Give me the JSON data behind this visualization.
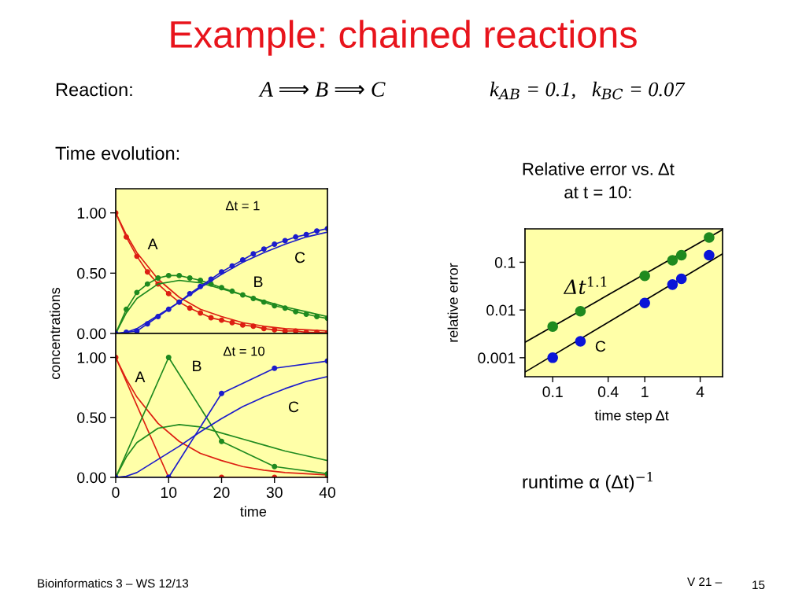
{
  "chart_data": [
    {
      "type": "other",
      "title": "Example: chained reactions",
      "annotations": [
        "Reaction:",
        "A ⟹ B ⟹ C",
        "k$_{AB}$ = 0.1,   k$_{BC}$ = 0.07",
        "Time evolution:",
        "runtime α (Δt)$^{−1}$",
        "Bioinformatics 3 – WS 12/13",
        "V 21 –",
        "15"
      ]
    },
    {
      "type": "line",
      "title": "Δt = 1",
      "ylabel": "concentrations",
      "xlim": [
        0,
        40
      ],
      "ylim": [
        0,
        1.2
      ],
      "yticks": [
        {
          "value": 0,
          "label": "0.00"
        },
        {
          "value": 0.5,
          "label": "0.50"
        },
        {
          "value": 1,
          "label": "1.00"
        }
      ],
      "tick_labels": "y",
      "series": [
        {
          "color": "#dd1f12",
          "marker": "circle",
          "x": [
            0,
            2,
            4,
            6,
            8,
            10,
            12,
            14,
            16,
            18,
            20,
            22,
            24,
            26,
            28,
            30,
            32,
            34,
            36,
            38,
            40
          ],
          "values": [
            1.0,
            0.8,
            0.64,
            0.51,
            0.41,
            0.33,
            0.26,
            0.21,
            0.17,
            0.13,
            0.11,
            0.09,
            0.07,
            0.06,
            0.04,
            0.03,
            0.02,
            0.02,
            0.01,
            0.01,
            0.005
          ]
        },
        {
          "color": "#dd1f12",
          "x": [
            0,
            2,
            4,
            8,
            12,
            16,
            20,
            24,
            28,
            32,
            36,
            40
          ],
          "values": [
            1.0,
            0.82,
            0.67,
            0.45,
            0.3,
            0.2,
            0.14,
            0.09,
            0.06,
            0.04,
            0.03,
            0.02
          ]
        },
        {
          "color": "#1f8a1f",
          "marker": "circle",
          "x": [
            0,
            2,
            4,
            6,
            8,
            10,
            12,
            14,
            16,
            18,
            20,
            22,
            24,
            26,
            28,
            30,
            32,
            34,
            36,
            38,
            40
          ],
          "values": [
            0,
            0.2,
            0.34,
            0.41,
            0.46,
            0.48,
            0.48,
            0.46,
            0.44,
            0.41,
            0.38,
            0.35,
            0.32,
            0.29,
            0.26,
            0.23,
            0.21,
            0.18,
            0.16,
            0.14,
            0.125
          ]
        },
        {
          "color": "#1f8a1f",
          "x": [
            0,
            2,
            4,
            8,
            12,
            16,
            20,
            24,
            28,
            32,
            36,
            40
          ],
          "values": [
            0,
            0.17,
            0.29,
            0.41,
            0.44,
            0.42,
            0.37,
            0.32,
            0.27,
            0.22,
            0.18,
            0.14
          ]
        },
        {
          "color": "#1c1ccc",
          "marker": "circle",
          "x": [
            0,
            2,
            4,
            6,
            8,
            10,
            12,
            14,
            16,
            18,
            20,
            22,
            24,
            26,
            28,
            30,
            32,
            34,
            36,
            38,
            40
          ],
          "values": [
            0,
            0.01,
            0.02,
            0.08,
            0.14,
            0.2,
            0.26,
            0.33,
            0.39,
            0.45,
            0.51,
            0.56,
            0.61,
            0.66,
            0.7,
            0.74,
            0.77,
            0.8,
            0.82,
            0.85,
            0.87
          ]
        },
        {
          "color": "#1c1ccc",
          "x": [
            0,
            2,
            4,
            8,
            12,
            16,
            20,
            24,
            28,
            32,
            36,
            40
          ],
          "values": [
            0,
            0.01,
            0.04,
            0.15,
            0.26,
            0.38,
            0.49,
            0.59,
            0.67,
            0.74,
            0.8,
            0.84
          ]
        }
      ],
      "annotations": [
        "A",
        "B",
        "C"
      ]
    },
    {
      "type": "line",
      "title": "Δt = 10",
      "xlabel": "time",
      "xlim": [
        0,
        40
      ],
      "ylim": [
        0,
        1.2
      ],
      "xticks": [
        0,
        10,
        20,
        30,
        40
      ],
      "yticks": [
        {
          "value": 0,
          "label": "0.00"
        },
        {
          "value": 0.5,
          "label": "0.50"
        },
        {
          "value": 1,
          "label": "1.00"
        }
      ],
      "series": [
        {
          "color": "#dd1f12",
          "marker": "circle",
          "x": [
            0,
            10,
            20,
            30,
            40
          ],
          "values": [
            1.0,
            0,
            0,
            0,
            0
          ]
        },
        {
          "color": "#dd1f12",
          "x": [
            0,
            2,
            4,
            8,
            12,
            16,
            20,
            24,
            28,
            32,
            36,
            40
          ],
          "values": [
            1.0,
            0.82,
            0.67,
            0.45,
            0.3,
            0.2,
            0.14,
            0.09,
            0.06,
            0.04,
            0.03,
            0.02
          ]
        },
        {
          "color": "#1f8a1f",
          "marker": "circle",
          "x": [
            0,
            10,
            20,
            30,
            40
          ],
          "values": [
            0,
            1.0,
            0.3,
            0.09,
            0.03
          ]
        },
        {
          "color": "#1f8a1f",
          "x": [
            0,
            2,
            4,
            8,
            12,
            16,
            20,
            24,
            28,
            32,
            36,
            40
          ],
          "values": [
            0,
            0.17,
            0.29,
            0.41,
            0.44,
            0.42,
            0.37,
            0.32,
            0.27,
            0.22,
            0.18,
            0.14
          ]
        },
        {
          "color": "#1c1ccc",
          "marker": "circle",
          "x": [
            0,
            10,
            20,
            30,
            40
          ],
          "values": [
            0,
            0,
            0.7,
            0.91,
            0.97
          ]
        },
        {
          "color": "#1c1ccc",
          "x": [
            0,
            2,
            4,
            8,
            12,
            16,
            20,
            24,
            28,
            32,
            36,
            40
          ],
          "values": [
            0,
            0.01,
            0.04,
            0.15,
            0.26,
            0.38,
            0.49,
            0.59,
            0.67,
            0.74,
            0.8,
            0.84
          ]
        }
      ],
      "annotations": [
        "A",
        "B",
        "C"
      ]
    },
    {
      "type": "scatter",
      "title": "Relative error vs. Δt\nat t = 10:",
      "xlabel": "time step Δt",
      "ylabel": "relative error",
      "log": "xy",
      "xlim": [
        0.05,
        7
      ],
      "ylim": [
        0.0004,
        0.5
      ],
      "xticks": [
        0.1,
        0.4,
        1,
        4
      ],
      "yticks": [
        0.001,
        0.01,
        0.1
      ],
      "series": [
        {
          "type": "line",
          "color": "#000000",
          "x": [
            0.05,
            7
          ],
          "values": [
            0.0021,
            0.48
          ]
        },
        {
          "type": "line",
          "color": "#000000",
          "x": [
            0.05,
            7
          ],
          "values": [
            0.0005,
            0.15
          ]
        },
        {
          "color": "#1f8a1f",
          "marker": "circle",
          "x": [
            0.1,
            0.2,
            1,
            2,
            2.5,
            5
          ],
          "values": [
            0.0045,
            0.0094,
            0.052,
            0.11,
            0.14,
            0.33
          ]
        },
        {
          "color": "#0a14d8",
          "marker": "circle",
          "x": [
            0.1,
            0.2,
            1,
            2,
            2.5,
            5
          ],
          "values": [
            0.001,
            0.0022,
            0.014,
            0.034,
            0.045,
            0.14
          ]
        }
      ],
      "annotations": [
        "Δt$^{1.1}$",
        "C"
      ]
    }
  ]
}
